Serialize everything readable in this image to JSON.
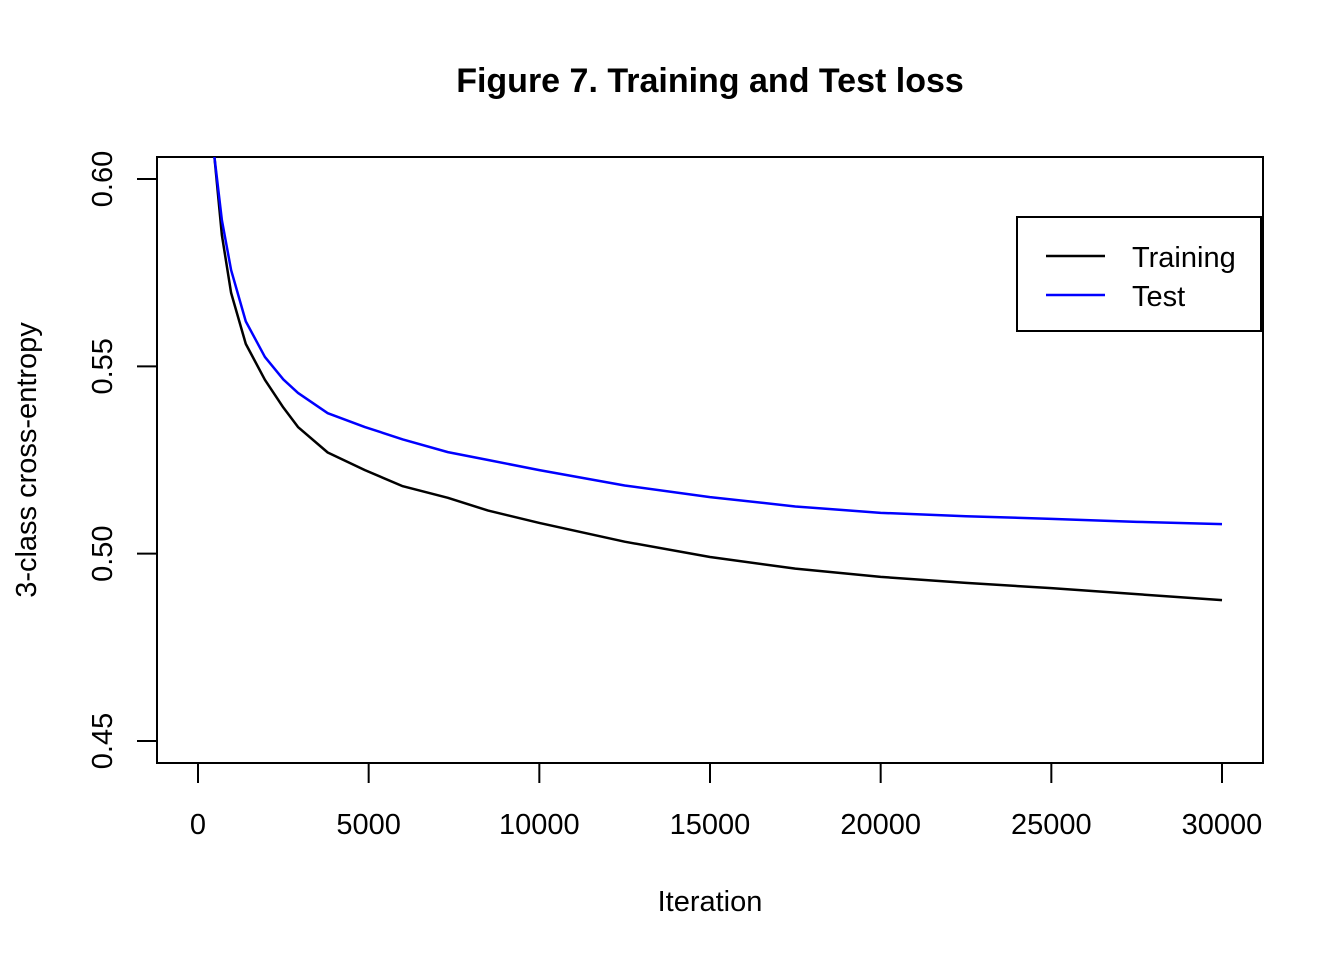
{
  "chart_data": {
    "type": "line",
    "title": "Figure 7. Training and Test loss",
    "xlabel": "Iteration",
    "ylabel": "3-class cross-entropy",
    "xlim": [
      -1200,
      31200
    ],
    "ylim": [
      0.444,
      0.606
    ],
    "xticks": [
      0,
      5000,
      10000,
      15000,
      20000,
      25000,
      30000
    ],
    "xtick_labels": [
      "0",
      "5000",
      "10000",
      "15000",
      "20000",
      "25000",
      "30000"
    ],
    "yticks": [
      0.45,
      0.5,
      0.55,
      0.6
    ],
    "ytick_labels": [
      "0.45",
      "0.50",
      "0.55",
      "0.60"
    ],
    "grid": false,
    "legend_position": "top-right",
    "series": [
      {
        "name": "Training",
        "color": "#000000",
        "x": [
          480,
          700,
          970,
          1400,
          1960,
          2500,
          2930,
          3800,
          4890,
          6000,
          7320,
          8500,
          10000,
          12500,
          15000,
          17500,
          20000,
          22500,
          25000,
          27500,
          30000
        ],
        "y": [
          0.606,
          0.585,
          0.5696,
          0.556,
          0.5464,
          0.539,
          0.5338,
          0.527,
          0.5223,
          0.518,
          0.5149,
          0.5115,
          0.5082,
          0.5032,
          0.4991,
          0.496,
          0.4938,
          0.4922,
          0.4908,
          0.4892,
          0.4876
        ]
      },
      {
        "name": "Test",
        "color": "#0000ff",
        "x": [
          480,
          700,
          970,
          1400,
          1960,
          2500,
          2930,
          3800,
          4890,
          6000,
          7320,
          8500,
          10000,
          12500,
          15000,
          17500,
          20000,
          22500,
          25000,
          27500,
          30000
        ],
        "y": [
          0.606,
          0.589,
          0.5757,
          0.562,
          0.5525,
          0.5465,
          0.5429,
          0.5375,
          0.5338,
          0.5305,
          0.5271,
          0.525,
          0.5223,
          0.5182,
          0.5151,
          0.5126,
          0.5109,
          0.51,
          0.5093,
          0.5085,
          0.5079
        ]
      }
    ]
  }
}
